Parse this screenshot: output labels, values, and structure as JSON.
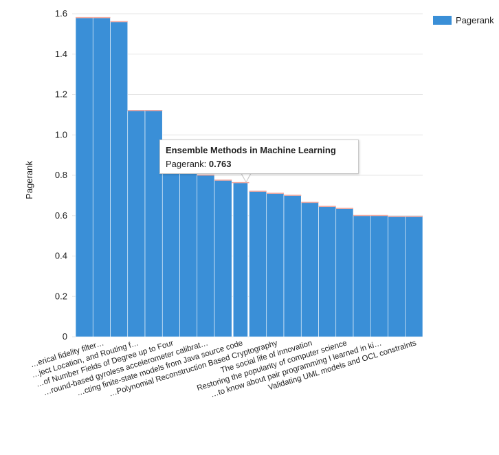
{
  "chart_data": {
    "type": "bar",
    "title": "",
    "xlabel": "",
    "ylabel": "Pagerank",
    "ylim": [
      0,
      1.6
    ],
    "yticks": [
      "0",
      "0.2",
      "0.4",
      "0.6",
      "0.8",
      "1.0",
      "1.2",
      "1.4",
      "1.6"
    ],
    "grid": true,
    "legend": {
      "position": "top-right",
      "entries": [
        "Pagerank"
      ]
    },
    "series": [
      {
        "name": "Pagerank",
        "color": "#3a8fd7",
        "values": [
          1.58,
          1.58,
          1.56,
          1.12,
          1.12,
          0.84,
          0.84,
          0.8,
          0.775,
          0.763,
          0.72,
          0.71,
          0.7,
          0.665,
          0.645,
          0.635,
          0.6,
          0.6,
          0.595,
          0.595
        ]
      }
    ],
    "categories": [
      "",
      "…erical fidelity filter…",
      "",
      "…ject Location, and Routing f…",
      "",
      "…of Number Fields of Degree up to Four",
      "",
      "…round-based gyroless accelerometer calibrat…",
      "",
      "…cting finite-state models from Java source code",
      "",
      "…Polynomial Reconstruction Based Cryptography",
      "",
      "The social life of innovation",
      "",
      "Restoring the popularity of computer science",
      "",
      "…to know about pair programming I learned in ki…",
      "",
      "Validating UML models and OCL constraints"
    ],
    "tooltip": {
      "title": "Ensemble Methods in Machine Learning",
      "label": "Pagerank:",
      "value": "0.763",
      "bar_index": 9
    }
  }
}
